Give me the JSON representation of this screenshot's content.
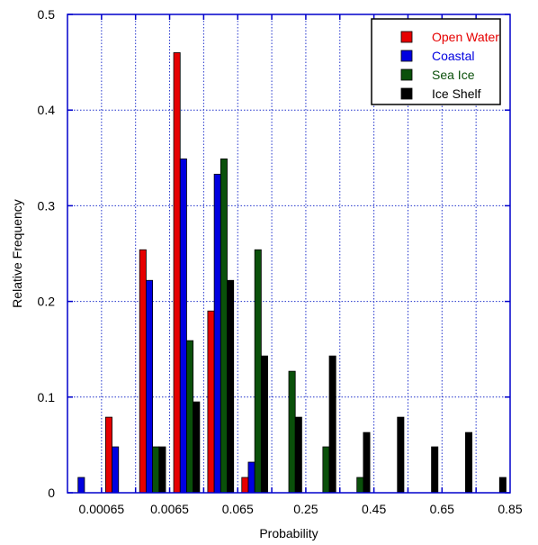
{
  "chart_data": {
    "type": "bar",
    "title": "",
    "xlabel": "Probability",
    "ylabel": "Relative Frequency",
    "ylim": [
      0,
      0.5
    ],
    "y_ticks": [
      {
        "value": 0,
        "label": "0"
      },
      {
        "value": 0.1,
        "label": "0.1"
      },
      {
        "value": 0.2,
        "label": "0.2"
      },
      {
        "value": 0.3,
        "label": "0.3"
      },
      {
        "value": 0.4,
        "label": "0.4"
      },
      {
        "value": 0.5,
        "label": "0.5"
      }
    ],
    "x_tick_labels": [
      "0.00065",
      "0.0065",
      "0.065",
      "0.25",
      "0.45",
      "0.65",
      "0.85"
    ],
    "bin_count": 13,
    "grid": true,
    "legend_position": "top-right",
    "series": [
      {
        "name": "Open Water",
        "color": "#e60000",
        "values": [
          0,
          0.079,
          0.254,
          0.46,
          0.19,
          0.016,
          0,
          0,
          0,
          0,
          0,
          0,
          0
        ]
      },
      {
        "name": "Coastal",
        "color": "#0000e0",
        "values": [
          0.016,
          0.048,
          0.222,
          0.349,
          0.333,
          0.032,
          0,
          0,
          0,
          0,
          0,
          0,
          0
        ]
      },
      {
        "name": "Sea Ice",
        "color": "#0a500a",
        "values": [
          0,
          0,
          0.048,
          0.159,
          0.349,
          0.254,
          0.127,
          0.048,
          0.016,
          0,
          0,
          0,
          0
        ]
      },
      {
        "name": "Ice Shelf",
        "color": "#000000",
        "values": [
          0,
          0,
          0.048,
          0.095,
          0.222,
          0.143,
          0.079,
          0.143,
          0.063,
          0.079,
          0.048,
          0.063,
          0.016
        ]
      }
    ]
  }
}
